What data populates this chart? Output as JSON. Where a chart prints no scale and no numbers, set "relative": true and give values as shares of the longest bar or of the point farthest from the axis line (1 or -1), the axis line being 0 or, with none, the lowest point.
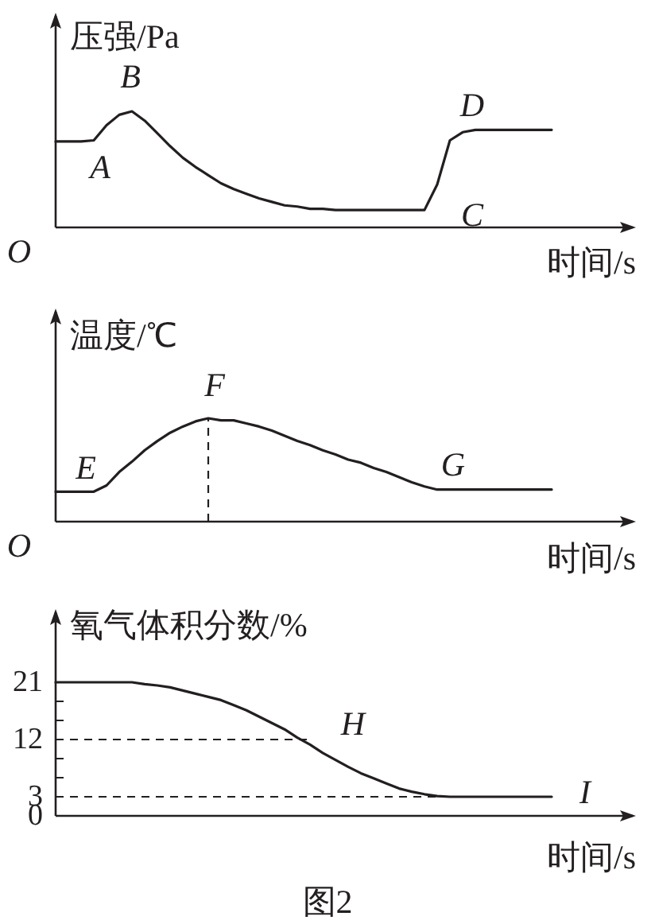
{
  "chart_data": [
    {
      "type": "line",
      "relative": true,
      "ylabel": "压强/Pa",
      "xlabel": "时间/s",
      "annotations": [
        "O",
        "A",
        "B",
        "C",
        "D"
      ],
      "categories": [
        null,
        null,
        null,
        null,
        null,
        null,
        null,
        null,
        null,
        null,
        null,
        null,
        null,
        null,
        null,
        null,
        null,
        null,
        null,
        null,
        null,
        null,
        null,
        null,
        null,
        null,
        null,
        null,
        null,
        null,
        null,
        null,
        null,
        null,
        null,
        null,
        null,
        null,
        null,
        null
      ],
      "series": [
        {
          "color": "#231f20",
          "line_style": "solid",
          "values": [
            0.74,
            0.74,
            0.74,
            0.75,
            0.88,
            0.97,
            1.0,
            0.92,
            0.81,
            0.7,
            0.6,
            0.52,
            0.45,
            0.38,
            0.33,
            0.29,
            0.25,
            0.22,
            0.19,
            0.18,
            0.16,
            0.16,
            0.15,
            0.15,
            0.15,
            0.15,
            0.15,
            0.15,
            0.15,
            0.15,
            0.37,
            0.75,
            0.82,
            0.84,
            0.84,
            0.84,
            0.84,
            0.84,
            0.84,
            0.84
          ]
        }
      ]
    },
    {
      "type": "line",
      "relative": true,
      "ylabel": "温度/℃",
      "xlabel": "时间/s",
      "annotations": [
        "O",
        "E",
        "F",
        "G"
      ],
      "categories": [
        null,
        null,
        null,
        null,
        null,
        null,
        null,
        null,
        null,
        null,
        null,
        null,
        null,
        null,
        null,
        null,
        null,
        null,
        null,
        null,
        null,
        null,
        null,
        null,
        null,
        null,
        null,
        null,
        null,
        null,
        null,
        null,
        null,
        null,
        null,
        null,
        null,
        null,
        null,
        null
      ],
      "series": [
        {
          "color": "#231f20",
          "line_style": "solid",
          "values": [
            0.29,
            0.29,
            0.29,
            0.29,
            0.35,
            0.48,
            0.58,
            0.69,
            0.78,
            0.86,
            0.92,
            0.97,
            1.0,
            0.98,
            0.98,
            0.95,
            0.92,
            0.88,
            0.83,
            0.78,
            0.74,
            0.69,
            0.65,
            0.6,
            0.57,
            0.52,
            0.48,
            0.43,
            0.38,
            0.34,
            0.31,
            0.31,
            0.31,
            0.31,
            0.31,
            0.31,
            0.31,
            0.31,
            0.31,
            0.31
          ]
        }
      ]
    },
    {
      "type": "line",
      "ylabel": "氧气体积分数/%",
      "xlabel": "时间/s",
      "annotations": [
        "H",
        "I",
        "图2"
      ],
      "ylim": [
        0,
        32
      ],
      "yticks": [
        0,
        3,
        {
          "value": 6,
          "label": null
        },
        {
          "value": 9,
          "label": null
        },
        12,
        {
          "value": 15,
          "label": null
        },
        {
          "value": 18,
          "label": null
        },
        21
      ],
      "categories": [
        null,
        null,
        null,
        null,
        null,
        null,
        null,
        null,
        null,
        null,
        null,
        null,
        null,
        null,
        null,
        null,
        null,
        null,
        null,
        null,
        null,
        null,
        null,
        null,
        null,
        null,
        null,
        null,
        null,
        null,
        null,
        null,
        null,
        null,
        null,
        null,
        null,
        null,
        null,
        null
      ],
      "series": [
        {
          "color": "#231f20",
          "line_style": "solid",
          "values": [
            21,
            21,
            21,
            21,
            21,
            21,
            21,
            20.7,
            20.5,
            20.2,
            19.7,
            19.2,
            18.7,
            18.2,
            17.4,
            16.6,
            15.6,
            14.6,
            13.6,
            12.3,
            11.2,
            9.9,
            8.8,
            7.7,
            6.7,
            5.9,
            5.1,
            4.3,
            3.8,
            3.4,
            3.1,
            3,
            3,
            3,
            3,
            3,
            3,
            3,
            3,
            3
          ]
        }
      ],
      "ref_lines": [
        {
          "axis": "y",
          "value": 12,
          "line_style": "dashed",
          "color": "#231f20"
        },
        {
          "axis": "y",
          "value": 3,
          "line_style": "dashed",
          "color": "#231f20"
        }
      ]
    }
  ]
}
